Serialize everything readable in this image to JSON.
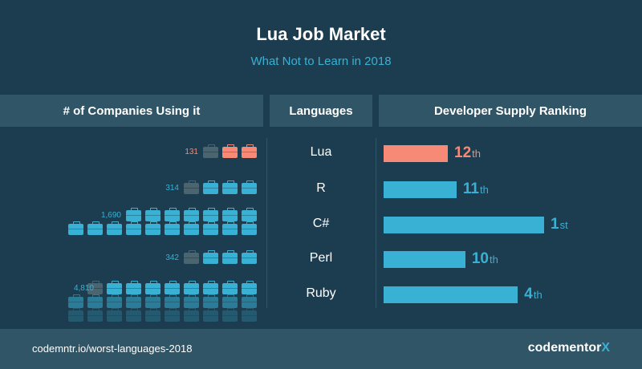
{
  "title": "Lua Job Market",
  "subtitle": "What Not to Learn in 2018",
  "headers": {
    "companies": "# of Companies Using it",
    "languages": "Languages",
    "supply": "Developer Supply Ranking"
  },
  "colors": {
    "highlight": "#f78a76",
    "accent": "#38b1d4",
    "background": "#1c3d4f",
    "panel": "#2f5566",
    "faded_icon": "#4a6470"
  },
  "icons": {
    "briefcase": "briefcase-icon"
  },
  "chart_data": {
    "type": "table",
    "rows": [
      {
        "language": "Lua",
        "companies": 131,
        "companies_label": "131",
        "rank": 12,
        "rank_num": "12",
        "rank_suffix": "th",
        "highlight": true
      },
      {
        "language": "R",
        "companies": 314,
        "companies_label": "314",
        "rank": 11,
        "rank_num": "11",
        "rank_suffix": "th",
        "highlight": false
      },
      {
        "language": "C#",
        "companies": 1690,
        "companies_label": "1,690",
        "rank": 1,
        "rank_num": "1",
        "rank_suffix": "st",
        "highlight": false
      },
      {
        "language": "Perl",
        "companies": 342,
        "companies_label": "342",
        "rank": 10,
        "rank_num": "10",
        "rank_suffix": "th",
        "highlight": false
      },
      {
        "language": "Ruby",
        "companies": 4810,
        "companies_label": "4,810",
        "rank": 4,
        "rank_num": "4",
        "rank_suffix": "th",
        "highlight": false
      }
    ]
  },
  "footer": {
    "url": "codemntr.io/worst-languages-2018",
    "logo_main": "codementor",
    "logo_x": "X"
  }
}
